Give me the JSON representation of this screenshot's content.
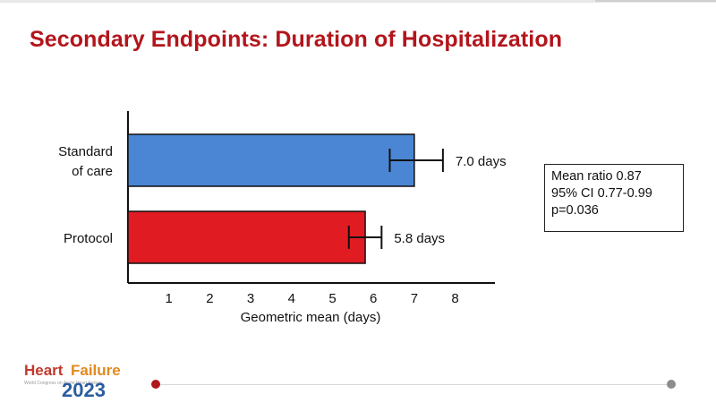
{
  "slide": {
    "title": "Secondary Endpoints: Duration of Hospitalization"
  },
  "stats_box": {
    "lines": [
      "Mean ratio 0.87",
      "95% CI 0.77-0.99",
      "p=0.036"
    ]
  },
  "logo": {
    "word1": "Heart",
    "word2": "Failure",
    "small_text": "World Congress on Acute Heart Failure",
    "year": "2023"
  },
  "colors": {
    "title": "#b3151c",
    "standard_of_care": "#4a86d4",
    "protocol": "#e11b22",
    "progress_active": "#b3151c",
    "progress_inactive": "#8c8c8c"
  },
  "chart_data": {
    "type": "bar",
    "orientation": "horizontal",
    "categories": [
      "Standard of care",
      "Protocol"
    ],
    "category_lines": [
      [
        "Standard",
        "of care"
      ],
      [
        "Protocol"
      ]
    ],
    "values": [
      7.0,
      5.8
    ],
    "error_low": [
      6.4,
      5.4
    ],
    "error_high": [
      7.7,
      6.2
    ],
    "data_labels": [
      "7.0 days",
      "5.8 days"
    ],
    "bar_colors": [
      "#4a86d4",
      "#e11b22"
    ],
    "xlabel": "Geometric mean (days)",
    "xlim": [
      0,
      9
    ],
    "xticks": [
      1,
      2,
      3,
      4,
      5,
      6,
      7,
      8
    ],
    "grid": false
  }
}
